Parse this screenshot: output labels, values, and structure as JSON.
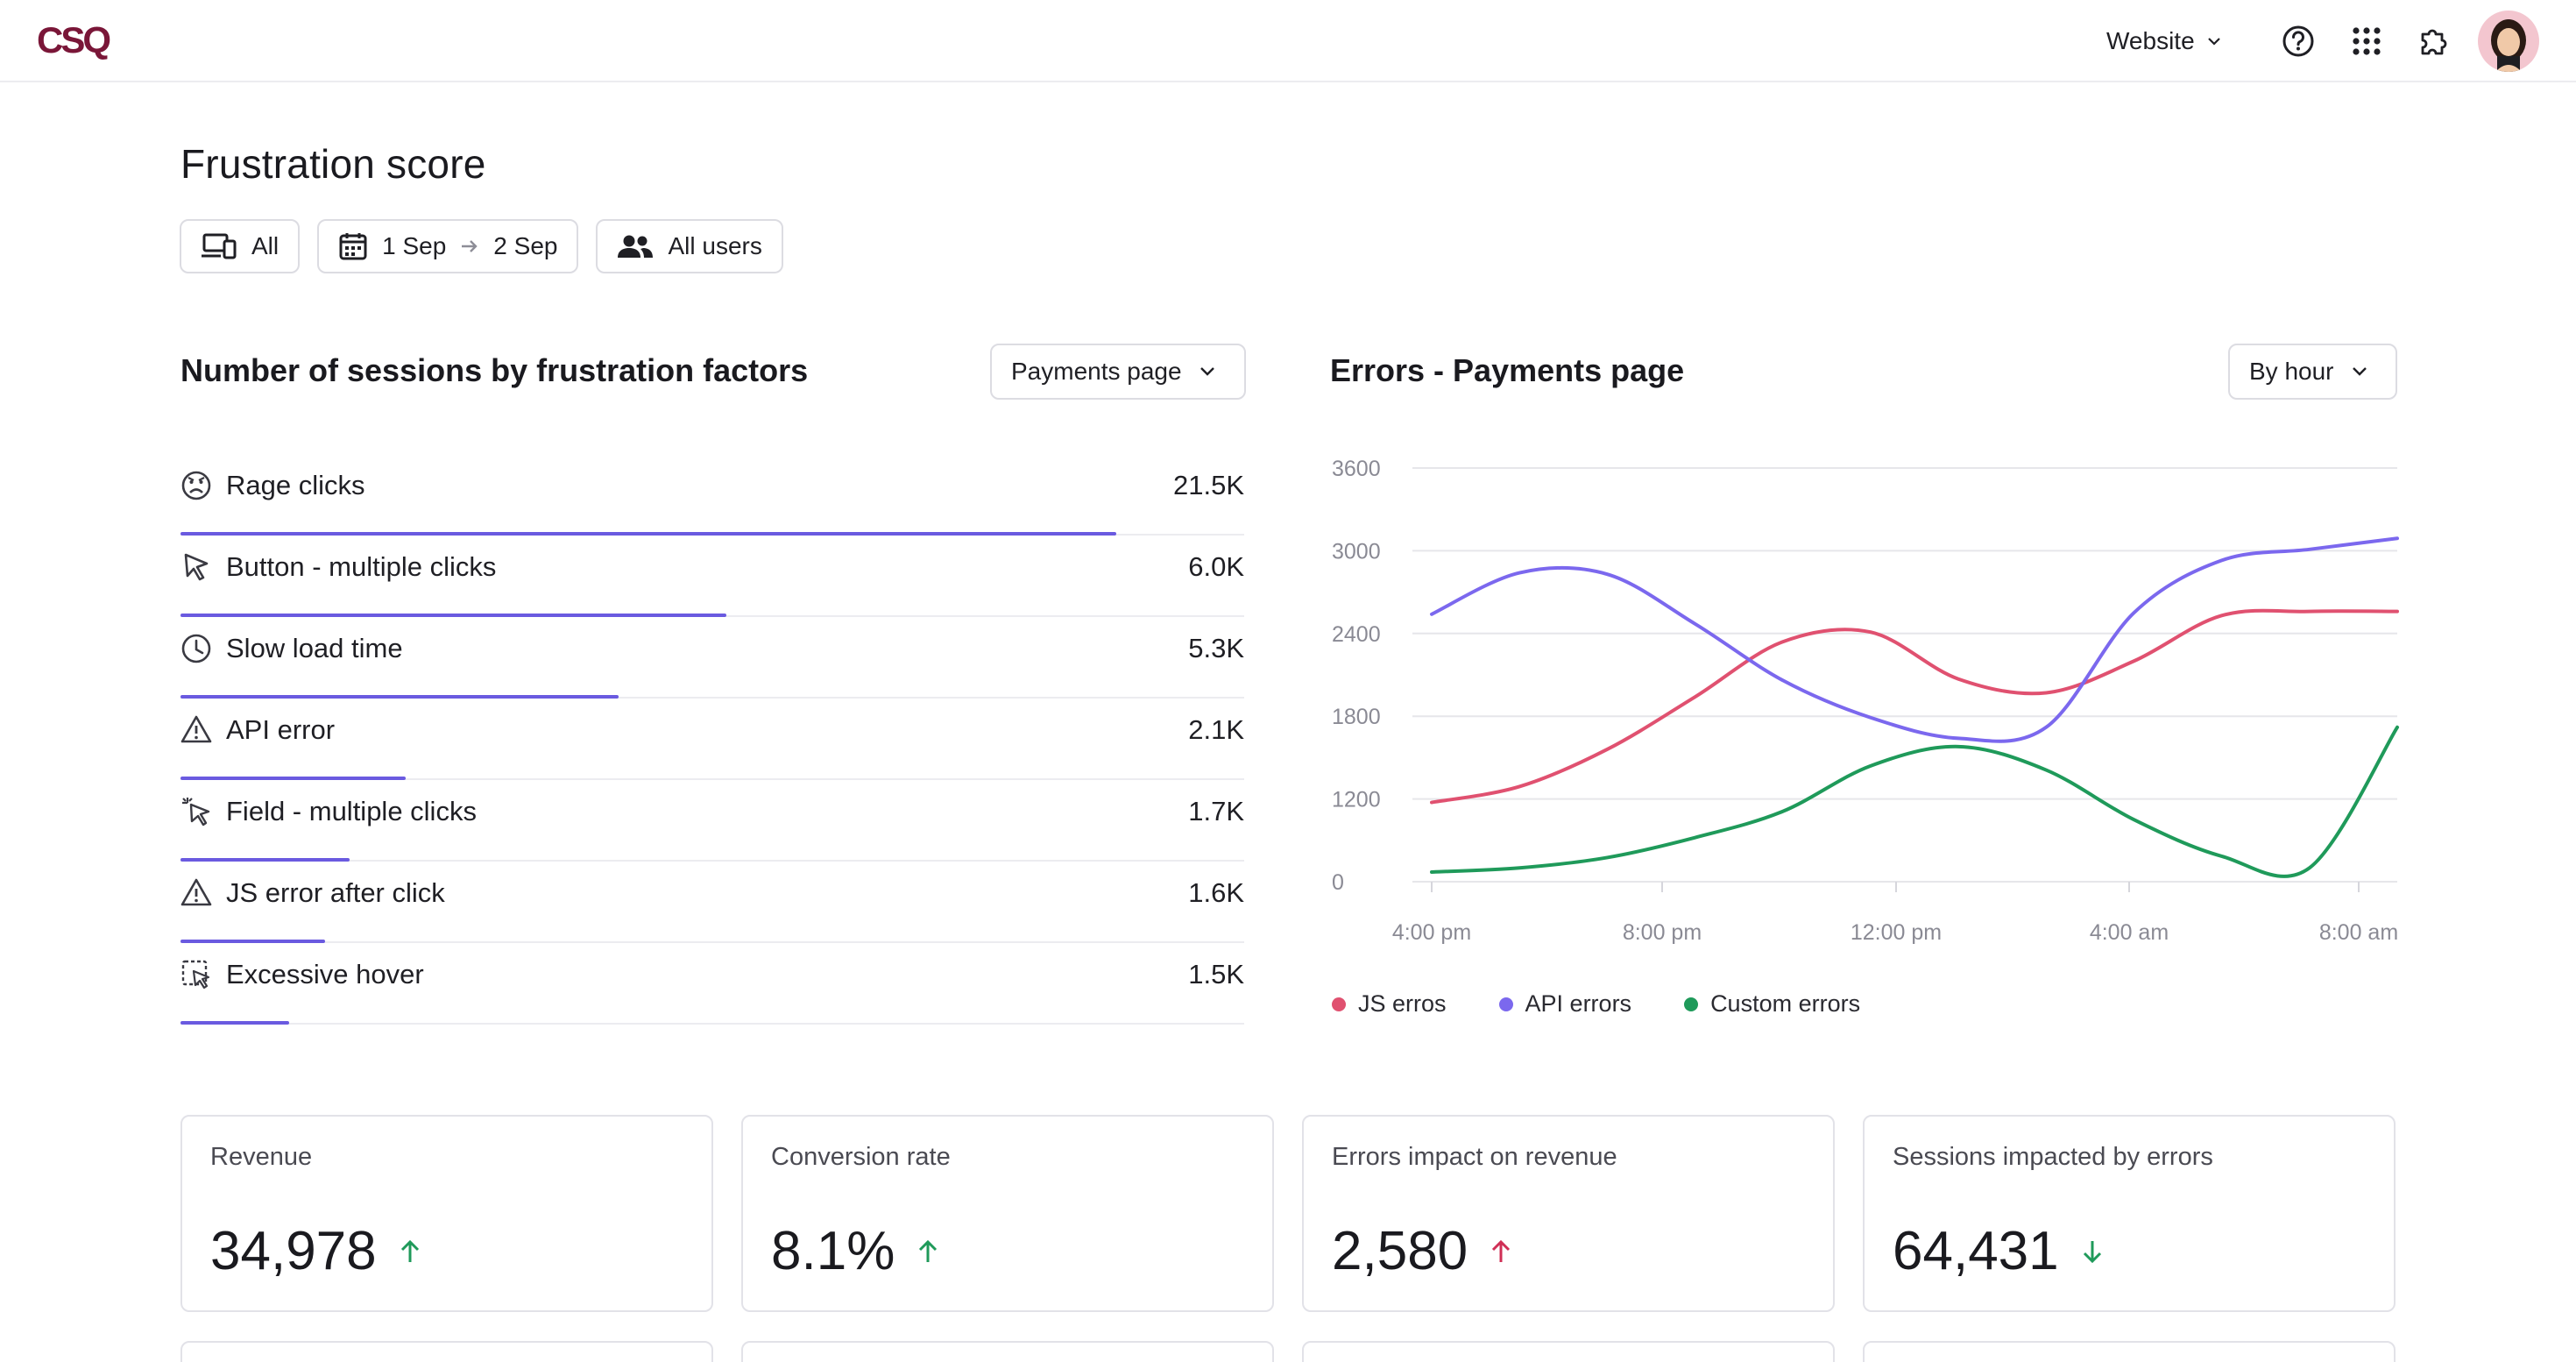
{
  "app": {
    "logo_text": "CSQ",
    "site_selector": "Website"
  },
  "colors": {
    "brand": "#7a1638",
    "accent": "#6a5ae0",
    "js_errors": "#e05170",
    "api_errors": "#7b68ee",
    "custom_errors": "#1f9a5a",
    "up_good": "#1f9a5a",
    "up_bad": "#d02f56",
    "down_good": "#1f9a5a"
  },
  "page": {
    "title": "Frustration score",
    "filters": {
      "device": "All",
      "date_start": "1 Sep",
      "date_end": "2 Sep",
      "segment": "All users"
    }
  },
  "factors": {
    "title": "Number of sessions by frustration factors",
    "page_selector": "Payments page",
    "items": [
      {
        "label": "Rage clicks",
        "value": "21.5K",
        "share": 0.88,
        "icon": "sad-face-icon"
      },
      {
        "label": "Button - multiple clicks",
        "value": "6.0K",
        "share": 0.513,
        "icon": "cursor-click-icon"
      },
      {
        "label": "Slow load time",
        "value": "5.3K",
        "share": 0.412,
        "icon": "clock-icon"
      },
      {
        "label": "API error",
        "value": "2.1K",
        "share": 0.212,
        "icon": "warning-icon"
      },
      {
        "label": "Field - multiple clicks",
        "value": "1.7K",
        "share": 0.159,
        "icon": "cursor-sparkle-icon"
      },
      {
        "label": "JS error after click",
        "value": "1.6K",
        "share": 0.136,
        "icon": "warning-icon"
      },
      {
        "label": "Excessive hover",
        "value": "1.5K",
        "share": 0.102,
        "icon": "dashed-hover-icon"
      }
    ]
  },
  "errors": {
    "title": "Errors - Payments page",
    "granularity": "By hour"
  },
  "chart_data": {
    "type": "line",
    "title": "Errors - Payments page",
    "xlabel": "",
    "ylabel": "",
    "y_ticks": [
      "0",
      "1200",
      "1800",
      "2400",
      "3000",
      "3600"
    ],
    "x_ticks": [
      "4:00 pm",
      "8:00 pm",
      "12:00 pm",
      "4:00 am",
      "8:00 am"
    ],
    "grid": true,
    "legend_position": "bottom-left",
    "series": [
      {
        "name": "JS erros",
        "color": "#e05170",
        "values": [
          1150,
          1290,
          1560,
          1940,
          2340,
          2410,
          2070,
          1970,
          2200,
          2530,
          2560,
          2560
        ]
      },
      {
        "name": "API errors",
        "color": "#7b68ee",
        "values": [
          2540,
          2840,
          2830,
          2470,
          2060,
          1790,
          1640,
          1720,
          2550,
          2930,
          3010,
          3090
        ]
      },
      {
        "name": "Custom errors",
        "color": "#1f9a5a",
        "values": [
          140,
          200,
          350,
          640,
          1020,
          1440,
          1580,
          1410,
          900,
          370,
          200,
          1720
        ]
      }
    ]
  },
  "kpis": [
    {
      "label": "Revenue",
      "value": "34,978",
      "trend": "up",
      "trend_color": "#1f9a5a"
    },
    {
      "label": "Conversion rate",
      "value": "8.1%",
      "trend": "up",
      "trend_color": "#1f9a5a"
    },
    {
      "label": "Errors impact on revenue",
      "value": "2,580",
      "trend": "up",
      "trend_color": "#d02f56"
    },
    {
      "label": "Sessions impacted by errors",
      "value": "64,431",
      "trend": "down",
      "trend_color": "#1f9a5a"
    }
  ]
}
